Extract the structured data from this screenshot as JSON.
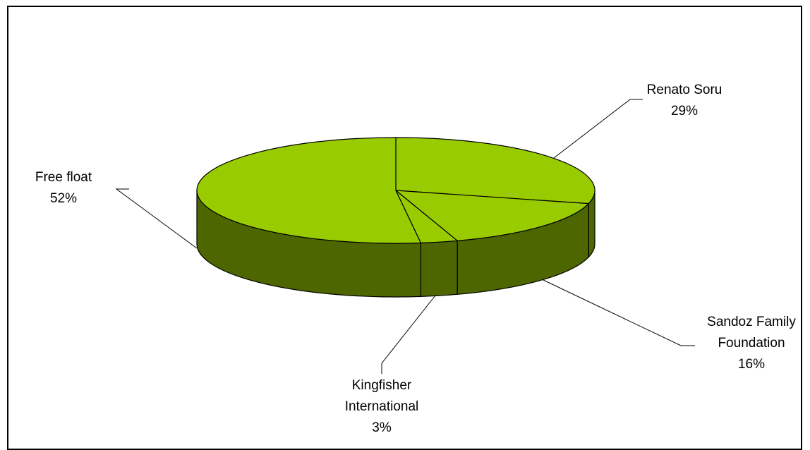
{
  "chart_data": {
    "type": "pie",
    "style": "3d",
    "slices": [
      {
        "label_lines": [
          "Renato Soru"
        ],
        "percent_label": "29%",
        "value": 29
      },
      {
        "label_lines": [
          "Sandoz Family",
          "Foundation"
        ],
        "percent_label": "16%",
        "value": 16
      },
      {
        "label_lines": [
          "Kingfisher",
          "International"
        ],
        "percent_label": "3%",
        "value": 3
      },
      {
        "label_lines": [
          "Free float"
        ],
        "percent_label": "52%",
        "value": 52
      }
    ],
    "colors": {
      "top": "#99cc00",
      "side": "#4d6600",
      "edge": "#000000"
    }
  }
}
